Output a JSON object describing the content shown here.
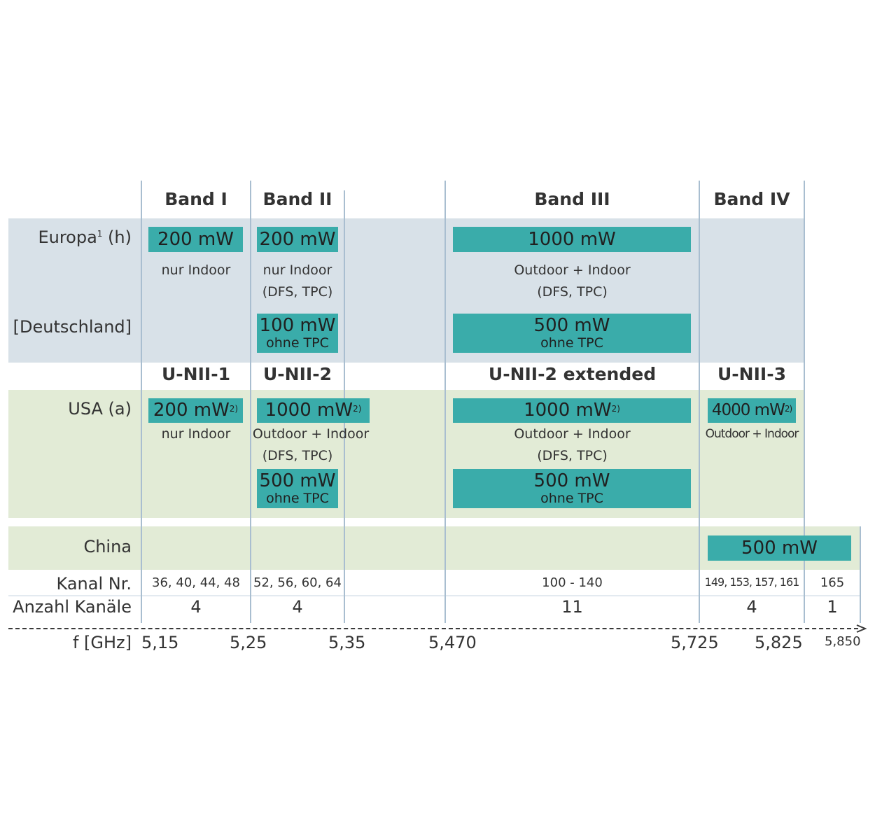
{
  "bands": [
    "Band I",
    "Band II",
    "Band III",
    "Band IV"
  ],
  "unii": [
    "U-NII-1",
    "U-NII-2",
    "U-NII-2 extended",
    "U-NII-3"
  ],
  "rows": {
    "europa_label": "Europa",
    "europa_sup": "1",
    "europa_suffix": " (h)",
    "deutschland": "[Deutschland]",
    "usa": "USA (a)",
    "china": "China",
    "kanal": "Kanal Nr.",
    "anzahl": "Anzahl Kanäle",
    "freq": "f [GHz]"
  },
  "europe": {
    "band1_power": "200 mW",
    "band1_note": "nur Indoor",
    "band2_power": "200 mW",
    "band2_note1": "nur Indoor",
    "band2_note2": "(DFS, TPC)",
    "band3_power": "1000 mW",
    "band3_note1": "Outdoor + Indoor",
    "band3_note2": "(DFS, TPC)",
    "de_band2_power": "100 mW",
    "de_band2_sub": "ohne TPC",
    "de_band3_power": "500 mW",
    "de_band3_sub": "ohne TPC"
  },
  "usa": {
    "band1_power": "200 mW",
    "band1_sup": "2)",
    "band1_note": "nur Indoor",
    "band2_power": "1000 mW",
    "band2_sup": "2)",
    "band2_note1": "Outdoor + Indoor",
    "band2_note2": "(DFS, TPC)",
    "band2_low_power": "500 mW",
    "band2_low_sub": "ohne TPC",
    "band3_power": "1000 mW",
    "band3_sup": "2)",
    "band3_note1": "Outdoor + Indoor",
    "band3_note2": "(DFS, TPC)",
    "band3_low_power": "500 mW",
    "band3_low_sub": "ohne TPC",
    "band4_power": "4000 mW",
    "band4_sup": "2)",
    "band4_note": "Outdoor + Indoor"
  },
  "china": {
    "band4_power": "500 mW"
  },
  "channels": [
    "36, 40, 44, 48",
    "52, 56, 60, 64",
    "100 - 140",
    "149, 153, 157, 161",
    "165"
  ],
  "counts": [
    "4",
    "4",
    "11",
    "4",
    "1"
  ],
  "frequencies": [
    "5,15",
    "5,25",
    "5,35",
    "5,470",
    "5,725",
    "5,825",
    "5,850"
  ]
}
